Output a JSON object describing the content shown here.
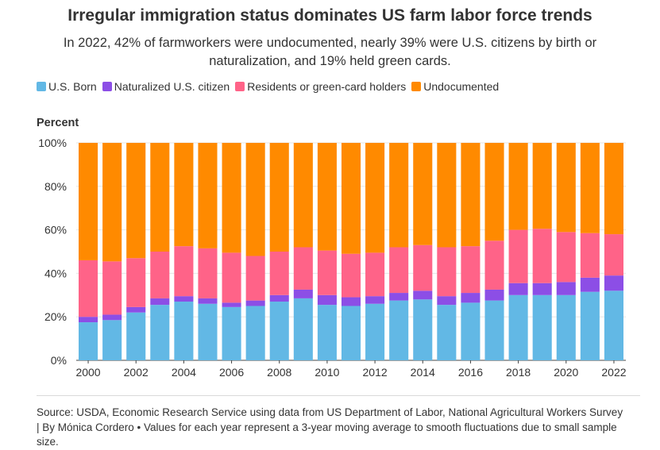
{
  "title": "Irregular immigration status dominates US farm labor force trends",
  "subtitle": "In 2022, 42% of farmworkers were undocumented, nearly 39% were U.S. citizens by birth or naturalization, and 19% held green cards.",
  "source": "Source: USDA, Economic Research Service using data from US Department of Labor, National Agricultural Workers Survey | By Mónica Cordero • Values for each year represent a 3-year moving average to smooth fluctuations due to small sample size.",
  "chart_data": {
    "type": "bar",
    "stacked": true,
    "ylabel": "Percent",
    "xlabel": "",
    "ylim": [
      0,
      100
    ],
    "yticks": [
      0,
      20,
      40,
      60,
      80,
      100
    ],
    "ytick_labels": [
      "0%",
      "20%",
      "40%",
      "60%",
      "80%",
      "100%"
    ],
    "xtick_labels": [
      "2000",
      "2002",
      "2004",
      "2006",
      "2008",
      "2010",
      "2012",
      "2014",
      "2016",
      "2018",
      "2020",
      "2022"
    ],
    "legend_position": "top-left",
    "grid": "horizontal",
    "categories": [
      "2000",
      "2001",
      "2002",
      "2003",
      "2004",
      "2005",
      "2006",
      "2007",
      "2008",
      "2009",
      "2010",
      "2011",
      "2012",
      "2013",
      "2014",
      "2015",
      "2016",
      "2017",
      "2018",
      "2019",
      "2020",
      "2021",
      "2022"
    ],
    "series": [
      {
        "name": "U.S. Born",
        "color": "#62b8e5",
        "values": [
          17.5,
          18.5,
          22,
          25.5,
          27,
          26,
          24.5,
          25,
          27,
          28.5,
          25.5,
          25,
          26,
          27.5,
          28,
          25.5,
          26.5,
          27.5,
          30,
          30,
          30,
          31.5,
          32
        ]
      },
      {
        "name": "Naturalized U.S. citizen",
        "color": "#8c4ee6",
        "values": [
          2.5,
          2.5,
          2.5,
          3,
          2.5,
          2.5,
          2,
          2.5,
          3,
          4,
          4.5,
          4,
          3.5,
          3.5,
          4,
          4,
          4.5,
          5,
          5.5,
          5.5,
          6,
          6.5,
          7
        ]
      },
      {
        "name": "Residents or green-card holders",
        "color": "#ff6388",
        "values": [
          26,
          24.5,
          22.5,
          21.5,
          23,
          23,
          23,
          20.5,
          20,
          19.5,
          20.5,
          20,
          20,
          21,
          21,
          22.5,
          21.5,
          22.5,
          24.5,
          25,
          23,
          20.5,
          19
        ]
      },
      {
        "name": "Undocumented",
        "color": "#ff8a00",
        "values": [
          54,
          54.5,
          53,
          50,
          47.5,
          48.5,
          50.5,
          52,
          50,
          48,
          49.5,
          51,
          50.5,
          48,
          47,
          48,
          47.5,
          45,
          40,
          39.5,
          41,
          41.5,
          42
        ]
      }
    ]
  }
}
